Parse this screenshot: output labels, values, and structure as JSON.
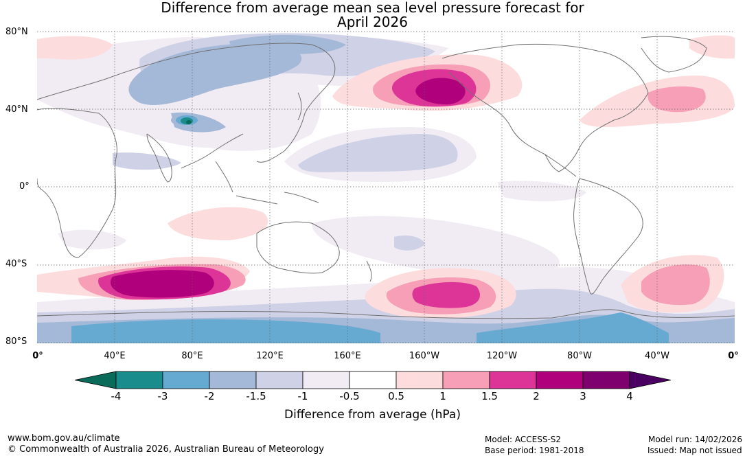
{
  "title": {
    "line1": "Difference from average mean sea level pressure forecast for",
    "line2": "April 2026"
  },
  "map": {
    "lat_labels": [
      "80°N",
      "40°N",
      "0°",
      "40°S",
      "80°S"
    ],
    "lon_labels": [
      "0°",
      "40°E",
      "80°E",
      "120°E",
      "160°E",
      "160°W",
      "120°W",
      "80°W",
      "40°W",
      "0°"
    ]
  },
  "colorbar": {
    "labels": [
      "-4",
      "-3",
      "-2",
      "-1.5",
      "-1",
      "-0.5",
      "0.5",
      "1",
      "1.5",
      "2",
      "3",
      "4"
    ],
    "colors": [
      "#1a8c8c",
      "#66a9d1",
      "#a4b8d8",
      "#cfd1e6",
      "#f1ecf4",
      "#ffffff",
      "#fddcdd",
      "#f79fb7",
      "#dd3597",
      "#b0007c",
      "#7e006f"
    ],
    "extend_low": "#0b6b5a",
    "extend_high": "#4a0060",
    "title": "Difference from average (hPa)"
  },
  "footer": {
    "url": "www.bom.gov.au/climate",
    "copyright": "© Commonwealth of Australia 2026, Australian Bureau of Meteorology",
    "model": "Model: ACCESS-S2",
    "base_period": "Base period: 1981-2018",
    "model_run": "Model run: 14/02/2026",
    "issued": "Issued: Map not issued"
  }
}
